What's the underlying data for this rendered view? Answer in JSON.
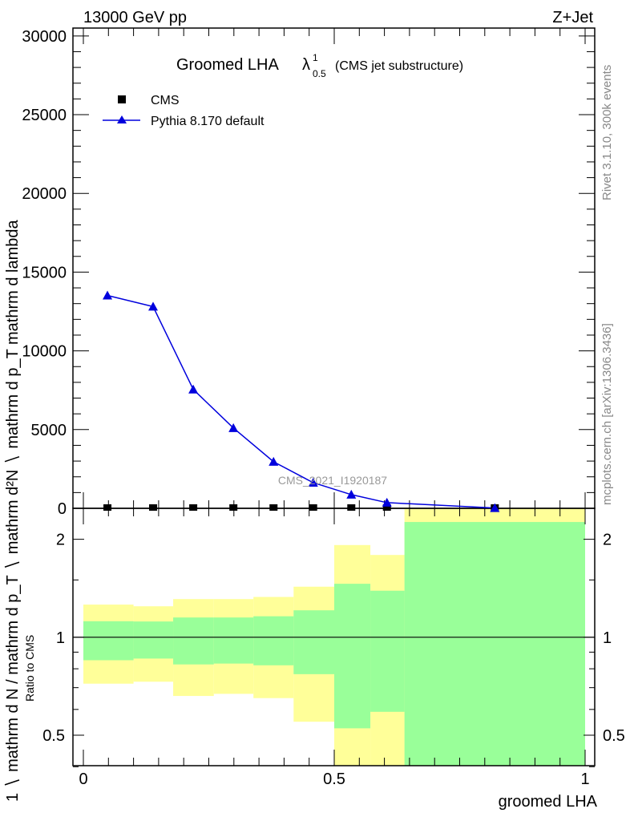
{
  "header": {
    "left": "13000 GeV pp",
    "right": "Z+Jet"
  },
  "side_text": {
    "top": "Rivet 3.1.10,  300k events",
    "bottom": "mcplots.cern.ch [arXiv:1306.3436]"
  },
  "watermark": "CMS_2021_I1920187",
  "chart_data": [
    {
      "type": "line",
      "title": "Groomed LHA",
      "title_symbol": "λ",
      "title_sup": "1",
      "title_sub": "0.5",
      "title_suffix": "(CMS jet substructure)",
      "ylabel_parts": [
        "mathrm d²N",
        "mathrm d p_T mathrm d lambda",
        "1",
        "mathrm d N / mathrm d p_T"
      ],
      "xlim": [
        -0.02,
        1.02
      ],
      "ylim": [
        0,
        30500
      ],
      "yticks": [
        0,
        5000,
        10000,
        15000,
        20000,
        25000,
        30000
      ],
      "ytick_labels": [
        "0",
        "5000",
        "10000",
        "15000",
        "20000",
        "25000",
        "30000"
      ],
      "legend": [
        "CMS",
        "Pythia 8.170 default"
      ],
      "legend_placement": "top-left",
      "x": [
        0.048,
        0.139,
        0.219,
        0.299,
        0.379,
        0.458,
        0.534,
        0.605,
        0.82
      ],
      "series": [
        {
          "name": "CMS",
          "color": "#000000",
          "marker": "square",
          "values": [
            0,
            0,
            0,
            0,
            0,
            0,
            0,
            0,
            0
          ]
        },
        {
          "name": "Pythia 8.170 default",
          "color": "#0000dd",
          "marker": "triangle",
          "values": [
            13520,
            12810,
            7550,
            5100,
            2960,
            1630,
            870,
            360,
            20
          ]
        }
      ]
    },
    {
      "type": "area",
      "ylabel": "Ratio to CMS",
      "xlabel": "groomed LHA",
      "scale": "log",
      "ylim": [
        0.403,
        2.49
      ],
      "yticks": [
        0.5,
        1,
        2
      ],
      "ytick_labels": [
        "0.5",
        "1",
        "2"
      ],
      "xticks": [
        0,
        0.5,
        1
      ],
      "xtick_labels": [
        "0",
        "0.5",
        "1"
      ],
      "bin_edges": [
        0,
        0.1,
        0.179,
        0.26,
        0.339,
        0.419,
        0.5,
        0.572,
        0.64,
        1.0
      ],
      "band_1sigma": {
        "color": "#99ff99",
        "low": [
          0.85,
          0.86,
          0.825,
          0.83,
          0.82,
          0.77,
          0.525,
          0.59,
          0.403
        ],
        "high": [
          1.12,
          1.118,
          1.15,
          1.15,
          1.16,
          1.21,
          1.46,
          1.39,
          2.26
        ]
      },
      "band_2sigma": {
        "color": "#ffff99",
        "low": [
          0.72,
          0.73,
          0.66,
          0.67,
          0.65,
          0.55,
          0.403,
          0.403,
          0.403
        ],
        "high": [
          1.26,
          1.245,
          1.31,
          1.31,
          1.33,
          1.43,
          1.92,
          1.79,
          2.49
        ]
      }
    }
  ]
}
